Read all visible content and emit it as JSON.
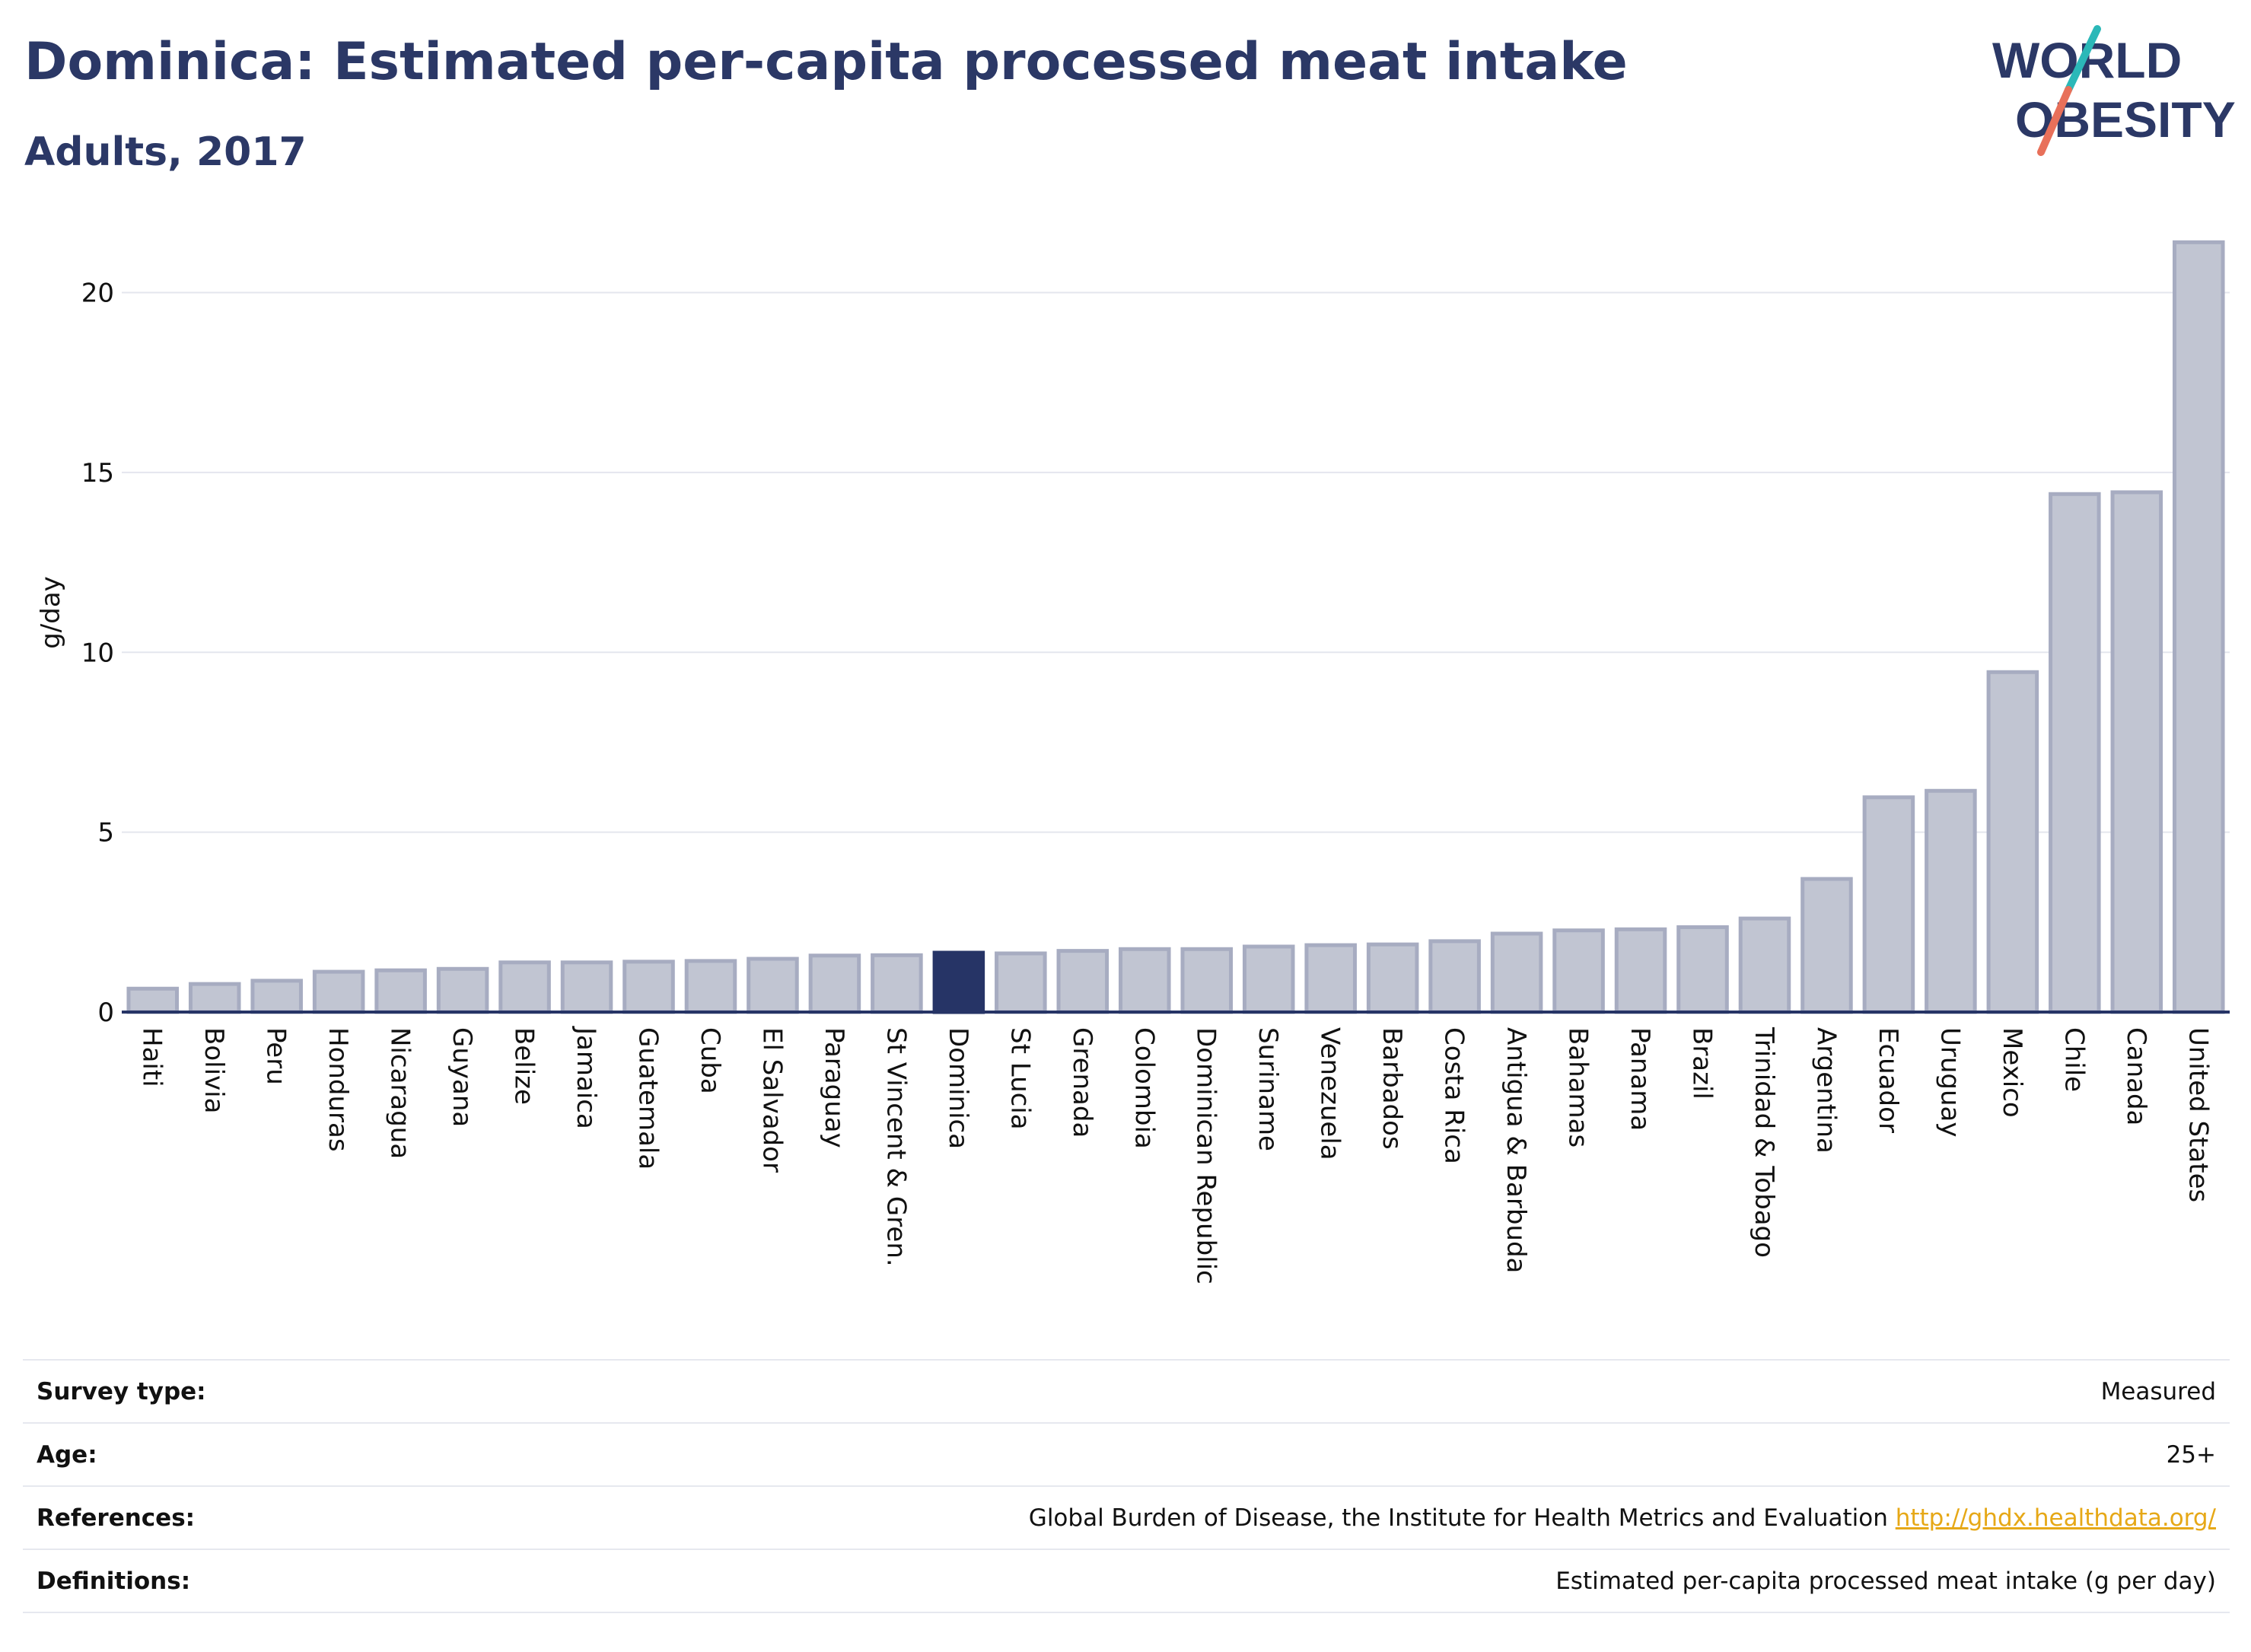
{
  "header": {
    "title": "Dominica: Estimated per-capita processed meat intake",
    "subtitle": "Adults, 2017"
  },
  "logo": {
    "line1": "WORLD",
    "line2": "OBESITY",
    "colors": {
      "text": "#2b3866",
      "slash_top": "#2bb8b8",
      "slash_bottom": "#e8705a"
    }
  },
  "chart_data": {
    "type": "bar",
    "title": "Dominica: Estimated per-capita processed meat intake",
    "subtitle": "Adults, 2017",
    "ylabel": "g/day",
    "xlabel": "",
    "ylim": [
      0,
      22
    ],
    "yticks": [
      0,
      5,
      10,
      15,
      20
    ],
    "grid": true,
    "highlight": "Dominica",
    "colors": {
      "bar": "#c1c5d2",
      "bar_border": "#a7acc1",
      "highlight": "#263466",
      "grid": "#e4e6ee",
      "axis": "#263466"
    },
    "categories": [
      "Haiti",
      "Bolivia",
      "Peru",
      "Honduras",
      "Nicaragua",
      "Guyana",
      "Belize",
      "Jamaica",
      "Guatemala",
      "Cuba",
      "El Salvador",
      "Paraguay",
      "St Vincent & Gren.",
      "Dominica",
      "St Lucia",
      "Grenada",
      "Colombia",
      "Dominican Republic",
      "Suriname",
      "Venezuela",
      "Barbados",
      "Costa Rica",
      "Antigua & Barbuda",
      "Bahamas",
      "Panama",
      "Brazil",
      "Trinidad & Tobago",
      "Argentina",
      "Ecuador",
      "Uruguay",
      "Mexico",
      "Chile",
      "Canada",
      "United States"
    ],
    "values": [
      0.65,
      0.78,
      0.87,
      1.12,
      1.16,
      1.2,
      1.38,
      1.38,
      1.4,
      1.42,
      1.48,
      1.57,
      1.58,
      1.65,
      1.63,
      1.7,
      1.75,
      1.75,
      1.82,
      1.86,
      1.88,
      1.97,
      2.18,
      2.27,
      2.3,
      2.36,
      2.6,
      3.7,
      5.97,
      6.15,
      9.45,
      14.4,
      14.45,
      21.4
    ]
  },
  "info": {
    "rows": [
      {
        "label": "Survey type:",
        "value": "Measured"
      },
      {
        "label": "Age:",
        "value": "25+"
      },
      {
        "label": "References:",
        "value": "Global Burden of Disease, the Institute for Health Metrics and Evaluation",
        "link": "http://ghdx.healthdata.org/"
      },
      {
        "label": "Definitions:",
        "value": "Estimated per-capita processed meat intake (g per day)"
      }
    ]
  }
}
